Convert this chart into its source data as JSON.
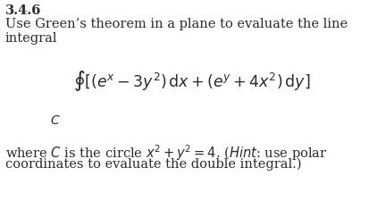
{
  "background_color": "#ffffff",
  "title_bold": "3.4.6",
  "line1": "Use Green’s theorem in a plane to evaluate the line",
  "line2": "integral",
  "integral_latex": "$\\oint [(e^x - 3y^2)\\,\\mathrm{d}x + (e^y + 4x^2)\\,\\mathrm{d}y]$",
  "bottom_line1": "where $C$ is the circle $x^2 + y^2 = 4$. ($\\mathit{Hint}$: use polar",
  "bottom_line2": "coordinates to evaluate the double integral.)",
  "subscript_C": "$C$",
  "main_fontsize": 10.5,
  "bold_fontsize": 10.5,
  "integral_fontsize": 12.5,
  "text_color": "#2b2b2b",
  "fig_width": 4.32,
  "fig_height": 2.25,
  "dpi": 100
}
